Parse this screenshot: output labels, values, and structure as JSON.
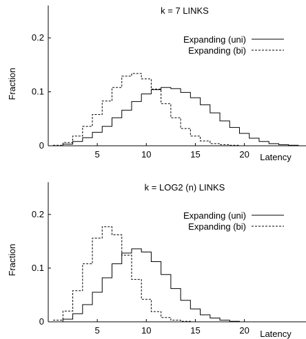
{
  "chart_data": [
    {
      "type": "line",
      "title": "k = 7 LINKS",
      "xlabel": "Latency",
      "ylabel": "Fraction",
      "xlim": [
        0,
        26
      ],
      "ylim": [
        0,
        0.26
      ],
      "xticks": [
        5,
        10,
        15,
        20
      ],
      "xtick_labels": [
        "5",
        "10",
        "15",
        "20"
      ],
      "yticks": [
        0,
        0.1,
        0.2
      ],
      "ytick_labels": [
        "0",
        "0.1",
        "0.2"
      ],
      "legend_position": "top-right",
      "x": [
        1,
        2,
        3,
        4,
        5,
        6,
        7,
        8,
        9,
        10,
        11,
        12,
        13,
        14,
        15,
        16,
        17,
        18,
        19,
        20,
        21,
        22,
        23,
        24,
        25,
        26
      ],
      "series": [
        {
          "name": "Expanding (uni)",
          "style": "solid",
          "values": [
            0,
            0.003,
            0.008,
            0.015,
            0.025,
            0.036,
            0.052,
            0.066,
            0.082,
            0.096,
            0.104,
            0.108,
            0.106,
            0.099,
            0.089,
            0.076,
            0.061,
            0.046,
            0.034,
            0.023,
            0.014,
            0.008,
            0.004,
            0.002,
            0.001,
            0
          ]
        },
        {
          "name": "Expanding (bi)",
          "style": "dashed",
          "values": [
            0.001,
            0.006,
            0.018,
            0.036,
            0.058,
            0.083,
            0.108,
            0.129,
            0.134,
            0.124,
            0.105,
            0.078,
            0.052,
            0.032,
            0.018,
            0.009,
            0.004,
            0.002,
            0.001,
            0,
            0,
            0,
            0,
            0,
            0,
            0
          ]
        }
      ]
    },
    {
      "type": "line",
      "title": "k = LOG2 (n) LINKS",
      "xlabel": "Latency",
      "ylabel": "Fraction",
      "xlim": [
        0,
        26
      ],
      "ylim": [
        0,
        0.26
      ],
      "xticks": [
        5,
        10,
        15,
        20
      ],
      "xtick_labels": [
        "5",
        "10",
        "15",
        "20"
      ],
      "yticks": [
        0,
        0.1,
        0.2
      ],
      "ytick_labels": [
        "0",
        "0.1",
        "0.2"
      ],
      "legend_position": "top-right",
      "x": [
        1,
        2,
        3,
        4,
        5,
        6,
        7,
        8,
        9,
        10,
        11,
        12,
        13,
        14,
        15,
        16,
        17,
        18,
        19,
        20,
        21,
        22,
        23,
        24,
        25,
        26
      ],
      "series": [
        {
          "name": "Expanding (uni)",
          "style": "solid",
          "values": [
            0,
            0.005,
            0.015,
            0.032,
            0.055,
            0.082,
            0.108,
            0.128,
            0.136,
            0.13,
            0.112,
            0.088,
            0.062,
            0.04,
            0.024,
            0.013,
            0.007,
            0.003,
            0.001,
            0,
            0,
            0,
            0,
            0,
            0,
            0
          ]
        },
        {
          "name": "Expanding (bi)",
          "style": "dashed",
          "values": [
            0.003,
            0.02,
            0.058,
            0.108,
            0.156,
            0.177,
            0.162,
            0.124,
            0.079,
            0.042,
            0.019,
            0.008,
            0.003,
            0.001,
            0,
            0,
            0,
            0,
            0,
            0,
            0,
            0,
            0,
            0,
            0,
            0
          ]
        }
      ]
    }
  ]
}
